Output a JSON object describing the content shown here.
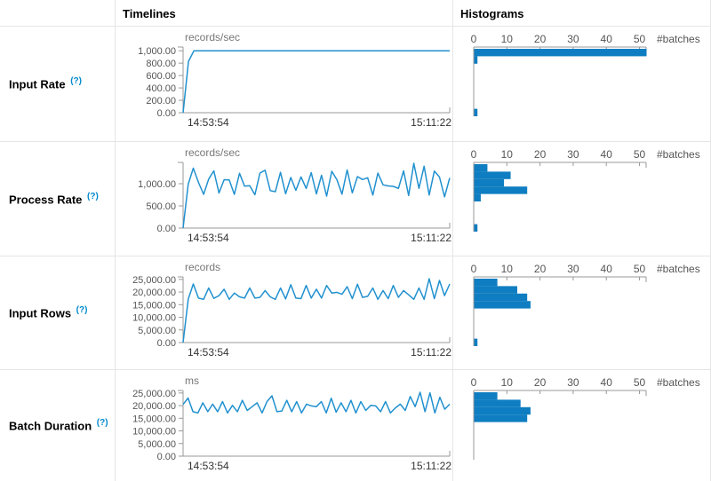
{
  "headers": {
    "timelines": "Timelines",
    "histograms": "Histograms"
  },
  "help_label": "(?)",
  "colors": {
    "bar": "#0e7dc1",
    "line": "#2191cf",
    "axis": "#999999",
    "tick_text": "#555555",
    "unit_text": "#777777",
    "time_text": "#333333",
    "help_link": "#0088cc",
    "border": "#e5e5e5"
  },
  "chart_data": [
    {
      "metric": "Input Rate",
      "timeline": {
        "type": "line",
        "unit": "records/sec",
        "x_start": "14:53:54",
        "x_end": "15:11:22",
        "y_ticks": [
          1000,
          800,
          600,
          400,
          200,
          0
        ],
        "y_tick_labels": [
          "1,000.00",
          "800.00",
          "600.00",
          "400.00",
          "200.00",
          "0.00"
        ],
        "y_plot_max": 1060,
        "values": [
          0,
          830,
          1000,
          1000,
          1000,
          1000,
          1000,
          1000,
          1000,
          1000,
          1000,
          1000,
          1000,
          1000,
          1000,
          1000,
          1000,
          1000,
          1000,
          1000,
          1000,
          1000,
          1000,
          1000,
          1000,
          1000,
          1000,
          1000,
          1000,
          1000,
          1000,
          1000,
          1000,
          1000,
          1000,
          1000,
          1000,
          1000,
          1000,
          1000,
          1000,
          1000,
          1000,
          1000,
          1000,
          1000,
          1000,
          1000,
          1000,
          1000
        ]
      },
      "histogram": {
        "type": "bar",
        "xlabel": "#batches",
        "x_ticks": [
          0,
          10,
          20,
          30,
          40,
          50
        ],
        "x_plot_max": 52,
        "bin_counts_top_to_bottom": [
          52,
          1
        ],
        "zero_bin_count": 1
      }
    },
    {
      "metric": "Process Rate",
      "timeline": {
        "type": "line",
        "unit": "records/sec",
        "x_start": "14:53:54",
        "x_end": "15:11:22",
        "y_ticks": [
          1000,
          500,
          0
        ],
        "y_tick_labels": [
          "1,000.00",
          "500.00",
          "0.00"
        ],
        "y_plot_max": 1480,
        "values": [
          0,
          990,
          1350,
          1030,
          760,
          1105,
          1290,
          790,
          1090,
          1085,
          760,
          1235,
          945,
          955,
          750,
          1240,
          1305,
          845,
          820,
          1255,
          775,
          1140,
          850,
          1155,
          895,
          1250,
          770,
          1190,
          720,
          1280,
          1090,
          765,
          1310,
          795,
          1160,
          1095,
          1135,
          745,
          1240,
          975,
          950,
          940,
          895,
          1290,
          735,
          1460,
          895,
          1395,
          745,
          1285,
          1150,
          705,
          1130
        ]
      },
      "histogram": {
        "type": "bar",
        "xlabel": "#batches",
        "x_ticks": [
          0,
          10,
          20,
          30,
          40,
          50
        ],
        "x_plot_max": 52,
        "bin_counts_top_to_bottom": [
          4,
          11,
          9,
          16,
          2
        ],
        "zero_bin_count": 1
      }
    },
    {
      "metric": "Input Rows",
      "timeline": {
        "type": "line",
        "unit": "records",
        "x_start": "14:53:54",
        "x_end": "15:11:22",
        "y_ticks": [
          25000,
          20000,
          15000,
          10000,
          5000,
          0
        ],
        "y_tick_labels": [
          "25,000.00",
          "20,000.00",
          "15,000.00",
          "10,000.00",
          "5,000.00",
          "0.00"
        ],
        "y_plot_max": 26000,
        "values": [
          0,
          17200,
          23200,
          17600,
          17100,
          21600,
          17500,
          18600,
          21100,
          17100,
          19600,
          18100,
          17600,
          21600,
          17600,
          17900,
          20600,
          18100,
          17100,
          21600,
          17300,
          22900,
          17600,
          17400,
          22600,
          17600,
          21100,
          17600,
          22600,
          19600,
          19900,
          19100,
          22100,
          17400,
          23100,
          17900,
          18300,
          21600,
          17100,
          20600,
          17400,
          22600,
          17900,
          20600,
          18900,
          17100,
          21600,
          17100,
          25300,
          17400,
          24600,
          18600,
          23200
        ]
      },
      "histogram": {
        "type": "bar",
        "xlabel": "#batches",
        "x_ticks": [
          0,
          10,
          20,
          30,
          40,
          50
        ],
        "x_plot_max": 52,
        "bin_counts_top_to_bottom": [
          7,
          13,
          16,
          17
        ],
        "zero_bin_count": 1
      }
    },
    {
      "metric": "Batch Duration",
      "timeline": {
        "type": "line",
        "unit": "ms",
        "x_start": "14:53:54",
        "x_end": "15:11:22",
        "y_ticks": [
          25000,
          20000,
          15000,
          10000,
          5000,
          0
        ],
        "y_tick_labels": [
          "25,000.00",
          "20,000.00",
          "15,000.00",
          "10,000.00",
          "5,000.00",
          "0.00"
        ],
        "y_plot_max": 26000,
        "values": [
          20500,
          23000,
          17600,
          17100,
          21100,
          17600,
          20600,
          17600,
          21600,
          17100,
          20100,
          17600,
          22100,
          18100,
          19600,
          21100,
          17100,
          21600,
          23900,
          17600,
          17900,
          22100,
          17600,
          21600,
          17100,
          20600,
          19900,
          19600,
          21600,
          17100,
          22900,
          17400,
          21100,
          17600,
          22100,
          17100,
          21600,
          18100,
          20100,
          19900,
          17600,
          21600,
          17100,
          19100,
          20600,
          18100,
          23600,
          19600,
          25300,
          17600,
          25100,
          17100,
          23300,
          18600,
          20600
        ]
      },
      "histogram": {
        "type": "bar",
        "xlabel": "#batches",
        "x_ticks": [
          0,
          10,
          20,
          30,
          40,
          50
        ],
        "x_plot_max": 52,
        "bin_counts_top_to_bottom": [
          7,
          14,
          17,
          16
        ],
        "zero_bin_count": 0
      }
    }
  ]
}
